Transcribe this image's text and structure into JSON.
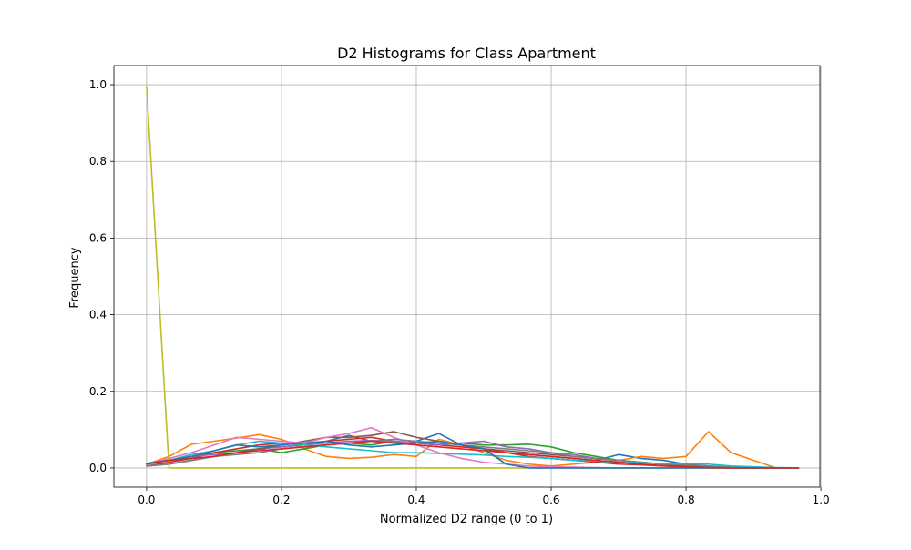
{
  "chart_data": {
    "type": "line",
    "title": "D2 Histograms for Class Apartment",
    "xlabel": "Normalized D2 range (0 to 1)",
    "ylabel": "Frequency",
    "xlim": [
      -0.0485,
      0.9985
    ],
    "ylim": [
      -0.05,
      1.05
    ],
    "xticks": [
      0.0,
      0.2,
      0.4,
      0.6,
      0.8,
      1.0
    ],
    "yticks": [
      0.0,
      0.2,
      0.4,
      0.6,
      0.8,
      1.0
    ],
    "xtick_labels": [
      "0.0",
      "0.2",
      "0.4",
      "0.6",
      "0.8",
      "1.0"
    ],
    "ytick_labels": [
      "0.0",
      "0.2",
      "0.4",
      "0.6",
      "0.8",
      "1.0"
    ],
    "grid": true,
    "x": [
      0.0,
      0.0333,
      0.0667,
      0.1,
      0.1333,
      0.1667,
      0.2,
      0.2333,
      0.2667,
      0.3,
      0.3333,
      0.3667,
      0.4,
      0.4333,
      0.4667,
      0.5,
      0.5333,
      0.5667,
      0.6,
      0.6333,
      0.6667,
      0.7,
      0.7333,
      0.7667,
      0.8,
      0.8333,
      0.8667,
      0.9,
      0.9333,
      0.9667
    ],
    "series": [
      {
        "color": "#1f77b4",
        "values": [
          0.005,
          0.01,
          0.02,
          0.03,
          0.04,
          0.05,
          0.055,
          0.06,
          0.07,
          0.085,
          0.07,
          0.065,
          0.07,
          0.09,
          0.06,
          0.05,
          0.04,
          0.035,
          0.03,
          0.025,
          0.02,
          0.035,
          0.025,
          0.02,
          0.01,
          0.005,
          0.002,
          0.001,
          0.0,
          0.0
        ]
      },
      {
        "color": "#ff7f0e",
        "values": [
          0.01,
          0.03,
          0.062,
          0.07,
          0.078,
          0.087,
          0.075,
          0.05,
          0.03,
          0.025,
          0.028,
          0.035,
          0.03,
          0.075,
          0.06,
          0.04,
          0.02,
          0.01,
          0.005,
          0.01,
          0.015,
          0.02,
          0.03,
          0.025,
          0.03,
          0.095,
          0.04,
          0.02,
          0.0,
          0.0
        ]
      },
      {
        "color": "#2ca02c",
        "values": [
          0.01,
          0.02,
          0.03,
          0.04,
          0.045,
          0.05,
          0.04,
          0.05,
          0.06,
          0.065,
          0.06,
          0.07,
          0.065,
          0.06,
          0.065,
          0.06,
          0.06,
          0.062,
          0.055,
          0.04,
          0.03,
          0.02,
          0.015,
          0.01,
          0.005,
          0.002,
          0.001,
          0.0,
          0.0,
          0.0
        ]
      },
      {
        "color": "#d62728",
        "values": [
          0.005,
          0.015,
          0.025,
          0.04,
          0.05,
          0.06,
          0.065,
          0.06,
          0.07,
          0.075,
          0.08,
          0.07,
          0.065,
          0.06,
          0.055,
          0.05,
          0.04,
          0.03,
          0.025,
          0.02,
          0.015,
          0.01,
          0.008,
          0.005,
          0.003,
          0.002,
          0.001,
          0.0,
          0.0,
          0.0
        ]
      },
      {
        "color": "#9467bd",
        "values": [
          0.01,
          0.02,
          0.03,
          0.035,
          0.04,
          0.05,
          0.055,
          0.06,
          0.065,
          0.07,
          0.072,
          0.07,
          0.065,
          0.06,
          0.065,
          0.07,
          0.055,
          0.05,
          0.04,
          0.035,
          0.025,
          0.02,
          0.015,
          0.01,
          0.006,
          0.003,
          0.001,
          0.0,
          0.0,
          0.0
        ]
      },
      {
        "color": "#8c564b",
        "values": [
          0.005,
          0.01,
          0.02,
          0.03,
          0.04,
          0.05,
          0.06,
          0.07,
          0.08,
          0.08,
          0.085,
          0.095,
          0.08,
          0.07,
          0.06,
          0.05,
          0.045,
          0.04,
          0.035,
          0.03,
          0.025,
          0.02,
          0.015,
          0.01,
          0.005,
          0.002,
          0.001,
          0.0,
          0.0,
          0.0
        ]
      },
      {
        "color": "#e377c2",
        "values": [
          0.01,
          0.025,
          0.04,
          0.06,
          0.08,
          0.075,
          0.07,
          0.065,
          0.08,
          0.09,
          0.105,
          0.08,
          0.06,
          0.04,
          0.025,
          0.015,
          0.01,
          0.005,
          0.003,
          0.002,
          0.001,
          0.0,
          0.0,
          0.0,
          0.0,
          0.0,
          0.0,
          0.0,
          0.0,
          0.0
        ]
      },
      {
        "color": "#7f7f7f",
        "values": [
          0.005,
          0.01,
          0.02,
          0.03,
          0.035,
          0.04,
          0.05,
          0.055,
          0.06,
          0.065,
          0.07,
          0.075,
          0.07,
          0.065,
          0.06,
          0.055,
          0.05,
          0.045,
          0.04,
          0.03,
          0.025,
          0.02,
          0.015,
          0.01,
          0.008,
          0.005,
          0.002,
          0.001,
          0.0,
          0.0
        ]
      },
      {
        "color": "#bcbd22",
        "values": [
          0.995,
          0.0,
          0.0,
          0.0,
          0.0,
          0.0,
          0.0,
          0.0,
          0.0,
          0.0,
          0.0,
          0.0,
          0.0,
          0.0,
          0.0,
          0.0,
          0.0,
          0.0,
          0.0,
          0.0,
          0.0,
          0.0,
          0.0,
          0.0,
          0.0,
          0.0,
          0.0,
          0.0,
          0.0,
          0.0
        ]
      },
      {
        "color": "#17becf",
        "values": [
          0.01,
          0.02,
          0.035,
          0.045,
          0.06,
          0.07,
          0.065,
          0.06,
          0.055,
          0.05,
          0.045,
          0.04,
          0.04,
          0.038,
          0.036,
          0.034,
          0.03,
          0.028,
          0.025,
          0.02,
          0.018,
          0.015,
          0.013,
          0.012,
          0.012,
          0.01,
          0.005,
          0.003,
          0.001,
          0.0
        ]
      },
      {
        "color": "#1f77b4",
        "values": [
          0.012,
          0.02,
          0.03,
          0.045,
          0.06,
          0.055,
          0.06,
          0.065,
          0.07,
          0.06,
          0.055,
          0.06,
          0.065,
          0.07,
          0.06,
          0.05,
          0.01,
          0.0,
          0.0,
          0.0,
          0.0,
          0.0,
          0.0,
          0.0,
          0.0,
          0.0,
          0.0,
          0.0,
          0.0,
          0.0
        ]
      },
      {
        "color": "#d62728",
        "values": [
          0.01,
          0.02,
          0.025,
          0.03,
          0.04,
          0.045,
          0.05,
          0.055,
          0.06,
          0.065,
          0.07,
          0.065,
          0.06,
          0.055,
          0.05,
          0.045,
          0.04,
          0.035,
          0.03,
          0.025,
          0.02,
          0.015,
          0.01,
          0.006,
          0.003,
          0.001,
          0.0,
          0.0,
          0.0,
          0.0
        ]
      }
    ]
  }
}
